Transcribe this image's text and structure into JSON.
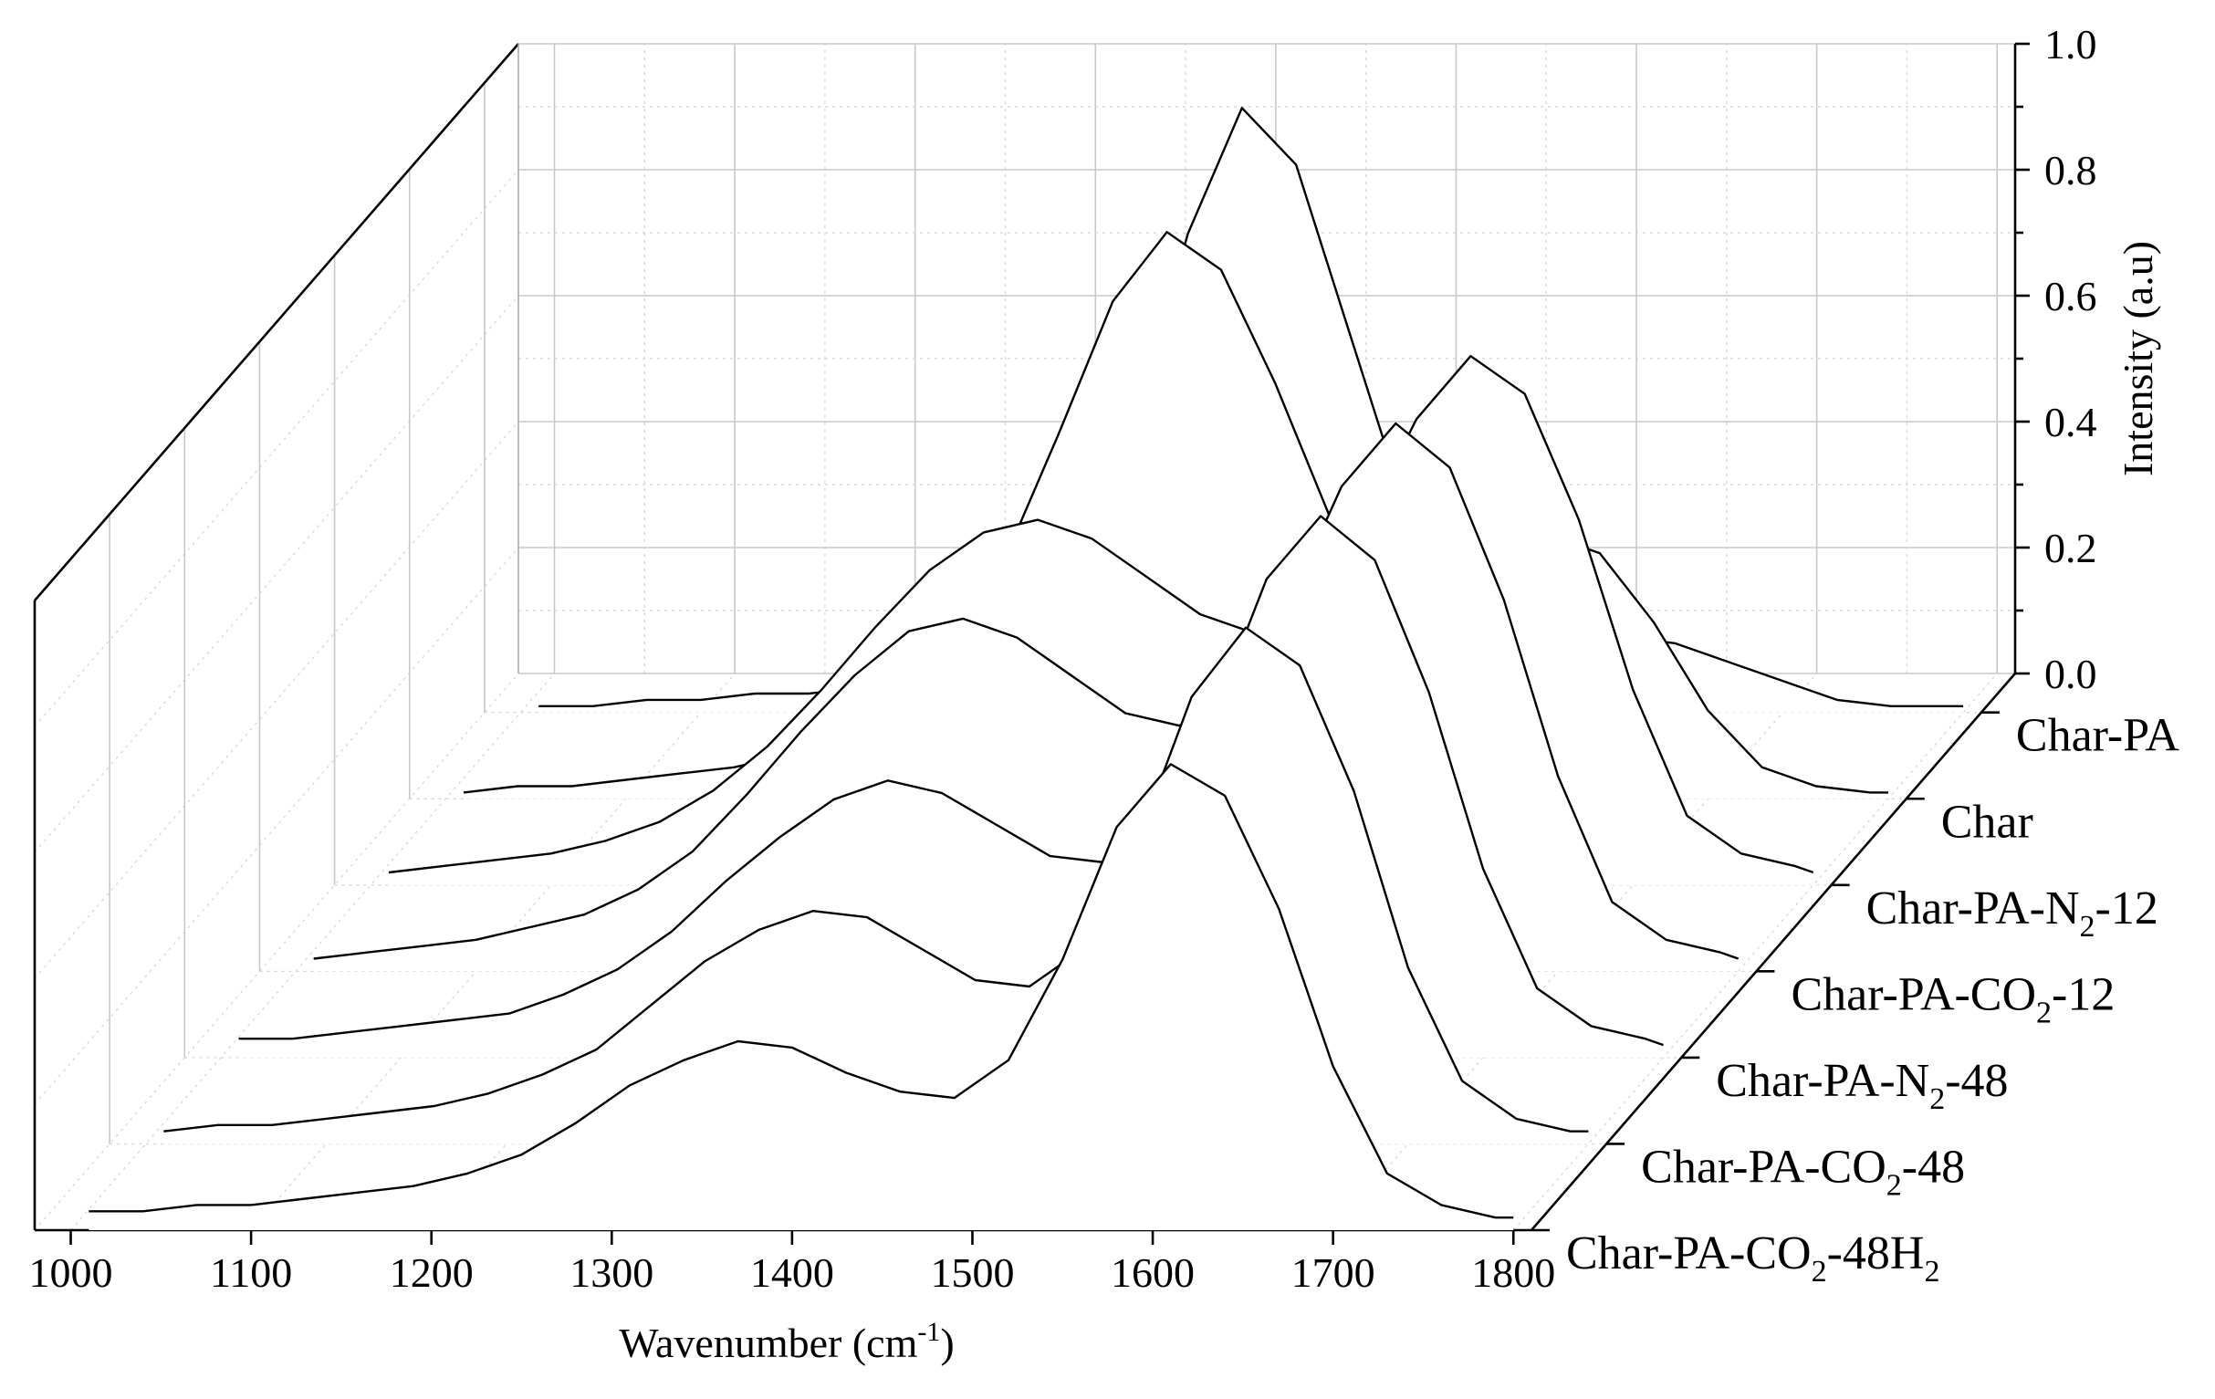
{
  "chart_data": {
    "type": "line",
    "subtype": "3d-waterfall",
    "x_axis": {
      "label": "Wavenumber (cm",
      "label_sup": "-1",
      "label_tail": ")",
      "range": [
        980,
        1810
      ],
      "ticks": [
        1000,
        1100,
        1200,
        1300,
        1400,
        1500,
        1600,
        1700,
        1800
      ],
      "tick_labels": [
        "1000",
        "1100",
        "1200",
        "1300",
        "1400",
        "1500",
        "1600",
        "1700",
        "1800"
      ]
    },
    "z_axis": {
      "label": "Intensity (a.u)",
      "range": [
        0,
        1
      ],
      "ticks": [
        0.0,
        0.2,
        0.4,
        0.6,
        0.8,
        1.0
      ],
      "tick_labels": [
        "0.0",
        "0.2",
        "0.4",
        "0.6",
        "0.8",
        "1.0"
      ]
    },
    "grid": true,
    "series": [
      {
        "name": "Char-PA-CO2-48H2",
        "label_parts": [
          [
            "Char-PA-CO",
            false
          ],
          [
            "2",
            true
          ],
          [
            "-48H",
            false
          ],
          [
            "2",
            true
          ]
        ],
        "x": [
          1010,
          1040,
          1070,
          1100,
          1130,
          1160,
          1190,
          1220,
          1250,
          1280,
          1310,
          1340,
          1370,
          1400,
          1430,
          1460,
          1490,
          1520,
          1550,
          1580,
          1610,
          1640,
          1670,
          1700,
          1730,
          1760,
          1790,
          1800
        ],
        "y": [
          0.03,
          0.03,
          0.04,
          0.04,
          0.05,
          0.06,
          0.07,
          0.09,
          0.12,
          0.17,
          0.23,
          0.27,
          0.3,
          0.29,
          0.25,
          0.22,
          0.21,
          0.27,
          0.43,
          0.64,
          0.74,
          0.69,
          0.51,
          0.26,
          0.09,
          0.04,
          0.02,
          0.02
        ]
      },
      {
        "name": "Char-PA-CO2-48",
        "label_parts": [
          [
            "Char-PA-CO",
            false
          ],
          [
            "2",
            true
          ],
          [
            "-48",
            false
          ]
        ],
        "x": [
          1010,
          1040,
          1070,
          1100,
          1130,
          1160,
          1190,
          1220,
          1250,
          1280,
          1310,
          1340,
          1370,
          1400,
          1430,
          1460,
          1490,
          1520,
          1550,
          1580,
          1610,
          1640,
          1670,
          1700,
          1730,
          1760,
          1790,
          1800
        ],
        "y": [
          0.02,
          0.03,
          0.03,
          0.04,
          0.05,
          0.06,
          0.08,
          0.11,
          0.15,
          0.22,
          0.29,
          0.34,
          0.37,
          0.36,
          0.31,
          0.26,
          0.25,
          0.31,
          0.48,
          0.71,
          0.82,
          0.76,
          0.56,
          0.28,
          0.1,
          0.04,
          0.02,
          0.02
        ]
      },
      {
        "name": "Char-PA-N2-48",
        "label_parts": [
          [
            "Char-PA-N",
            false
          ],
          [
            "2",
            true
          ],
          [
            "-48",
            false
          ]
        ],
        "x": [
          1010,
          1040,
          1070,
          1100,
          1130,
          1160,
          1190,
          1220,
          1250,
          1280,
          1310,
          1340,
          1370,
          1400,
          1430,
          1460,
          1490,
          1520,
          1550,
          1580,
          1610,
          1640,
          1670,
          1700,
          1730,
          1760,
          1790,
          1800
        ],
        "y": [
          0.03,
          0.03,
          0.04,
          0.05,
          0.06,
          0.07,
          0.1,
          0.14,
          0.2,
          0.28,
          0.35,
          0.41,
          0.44,
          0.42,
          0.37,
          0.32,
          0.31,
          0.37,
          0.54,
          0.76,
          0.86,
          0.79,
          0.58,
          0.3,
          0.11,
          0.05,
          0.03,
          0.02
        ]
      },
      {
        "name": "Char-PA-CO2-12",
        "label_parts": [
          [
            "Char-PA-CO",
            false
          ],
          [
            "2",
            true
          ],
          [
            "-12",
            false
          ]
        ],
        "x": [
          1010,
          1040,
          1070,
          1100,
          1130,
          1160,
          1190,
          1220,
          1250,
          1280,
          1310,
          1340,
          1370,
          1400,
          1430,
          1460,
          1490,
          1520,
          1550,
          1580,
          1610,
          1640,
          1670,
          1700,
          1730,
          1760,
          1790,
          1800
        ],
        "y": [
          0.02,
          0.03,
          0.04,
          0.05,
          0.07,
          0.09,
          0.13,
          0.19,
          0.28,
          0.38,
          0.47,
          0.54,
          0.56,
          0.53,
          0.47,
          0.41,
          0.39,
          0.44,
          0.58,
          0.77,
          0.87,
          0.8,
          0.59,
          0.31,
          0.11,
          0.05,
          0.03,
          0.02
        ]
      },
      {
        "name": "Char-PA-N2-12",
        "label_parts": [
          [
            "Char-PA-N",
            false
          ],
          [
            "2",
            true
          ],
          [
            "-12",
            false
          ]
        ],
        "x": [
          1010,
          1040,
          1070,
          1100,
          1130,
          1160,
          1190,
          1220,
          1250,
          1280,
          1310,
          1340,
          1370,
          1400,
          1430,
          1460,
          1490,
          1520,
          1550,
          1580,
          1610,
          1640,
          1670,
          1700,
          1730,
          1760,
          1790,
          1800
        ],
        "y": [
          0.02,
          0.03,
          0.04,
          0.05,
          0.07,
          0.1,
          0.15,
          0.22,
          0.31,
          0.41,
          0.5,
          0.56,
          0.58,
          0.55,
          0.49,
          0.43,
          0.4,
          0.44,
          0.57,
          0.74,
          0.84,
          0.78,
          0.58,
          0.31,
          0.11,
          0.05,
          0.03,
          0.02
        ]
      },
      {
        "name": "Char",
        "label_parts": [
          [
            "Char",
            false
          ]
        ],
        "x": [
          1010,
          1040,
          1070,
          1100,
          1130,
          1160,
          1190,
          1220,
          1250,
          1280,
          1310,
          1340,
          1370,
          1400,
          1430,
          1460,
          1490,
          1520,
          1550,
          1580,
          1610,
          1640,
          1670,
          1700,
          1730,
          1760,
          1790,
          1800
        ],
        "y": [
          0.01,
          0.02,
          0.02,
          0.03,
          0.04,
          0.05,
          0.07,
          0.1,
          0.15,
          0.24,
          0.38,
          0.58,
          0.79,
          0.9,
          0.84,
          0.66,
          0.45,
          0.31,
          0.28,
          0.34,
          0.42,
          0.39,
          0.28,
          0.14,
          0.05,
          0.02,
          0.01,
          0.01
        ]
      },
      {
        "name": "Char-PA",
        "label_parts": [
          [
            "Char-PA",
            false
          ]
        ],
        "x": [
          1010,
          1040,
          1070,
          1100,
          1130,
          1160,
          1190,
          1220,
          1250,
          1280,
          1310,
          1340,
          1370,
          1400,
          1430,
          1460,
          1490,
          1520,
          1550,
          1580,
          1610,
          1640,
          1670,
          1700,
          1730,
          1760,
          1790,
          1800
        ],
        "y": [
          0.01,
          0.01,
          0.02,
          0.02,
          0.03,
          0.03,
          0.04,
          0.05,
          0.08,
          0.13,
          0.24,
          0.45,
          0.76,
          0.96,
          0.87,
          0.6,
          0.33,
          0.17,
          0.11,
          0.1,
          0.12,
          0.11,
          0.08,
          0.05,
          0.02,
          0.01,
          0.01,
          0.01
        ]
      }
    ]
  }
}
